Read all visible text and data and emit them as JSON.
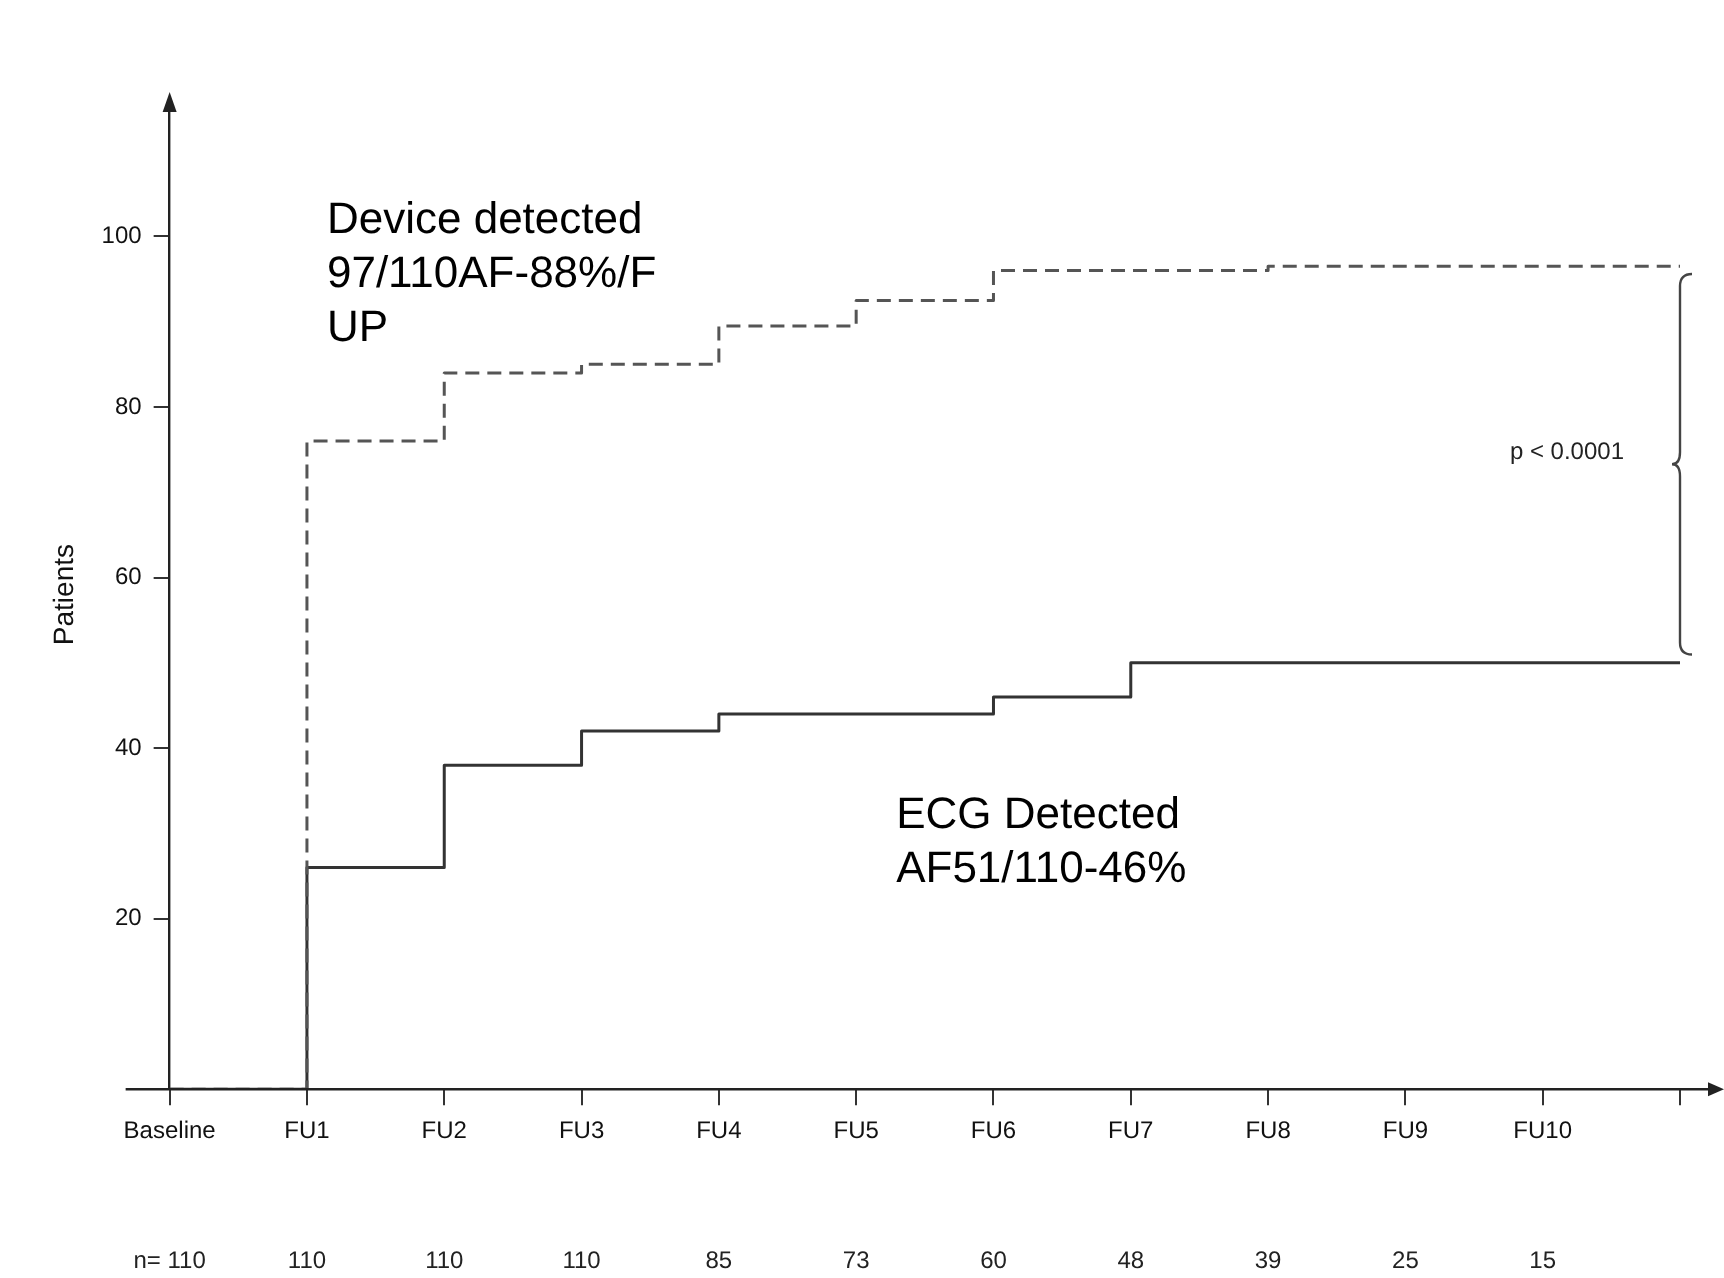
{
  "chart_data": {
    "type": "step",
    "ylabel": "Patients",
    "categories": [
      "Baseline",
      "FU1",
      "FU2",
      "FU3",
      "FU4",
      "FU5",
      "FU6",
      "FU7",
      "FU8",
      "FU9",
      "FU10",
      null
    ],
    "series": [
      {
        "name": "Device detected 97/110AF-88%/F UP",
        "color": "#555555",
        "line_style": "dashed",
        "values": [
          0,
          76,
          84,
          85,
          89.5,
          92.5,
          96,
          96,
          96.5,
          96.5,
          96.5,
          96.5
        ]
      },
      {
        "name": "ECG Detected AF51/110-46%",
        "color": "#333333",
        "line_style": "solid",
        "values": [
          0,
          26,
          38,
          42,
          44,
          44,
          46,
          50,
          50,
          50,
          50,
          50
        ]
      }
    ],
    "ylim": [
      0,
      116
    ],
    "yticks": [
      20,
      40,
      60,
      80,
      100
    ],
    "grid": false,
    "legend": false,
    "marker": "none",
    "annotations": [
      "p < 0.0001",
      "n= 110",
      "110",
      "110",
      "110",
      "85",
      "73",
      "60",
      "48",
      "39",
      "25",
      "15"
    ]
  }
}
